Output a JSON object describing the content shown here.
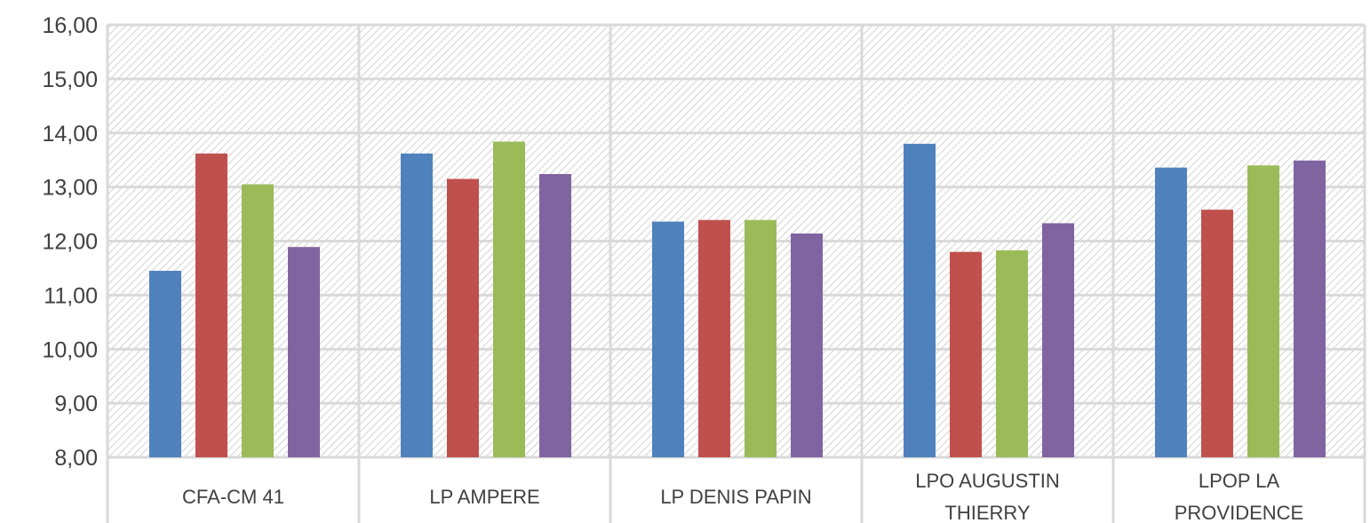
{
  "chart_data": {
    "type": "bar",
    "ylim": [
      8,
      16
    ],
    "yticks": [
      "8,00",
      "9,00",
      "10,00",
      "11,00",
      "12,00",
      "13,00",
      "14,00",
      "15,00",
      "16,00"
    ],
    "grid": true,
    "legend": "none",
    "categories": [
      {
        "lines": [
          "CFA-CM 41"
        ]
      },
      {
        "lines": [
          "LP AMPERE"
        ]
      },
      {
        "lines": [
          "LP DENIS PAPIN"
        ]
      },
      {
        "lines": [
          "LPO AUGUSTIN",
          "THIERRY"
        ]
      },
      {
        "lines": [
          "LPOP LA",
          "PROVIDENCE"
        ]
      }
    ],
    "series": [
      {
        "color": "#4F81BD",
        "values": [
          11.45,
          13.62,
          12.36,
          13.8,
          13.36
        ]
      },
      {
        "color": "#C0504D",
        "values": [
          13.62,
          13.15,
          12.39,
          11.8,
          12.58
        ]
      },
      {
        "color": "#9BBB59",
        "values": [
          13.05,
          13.84,
          12.39,
          11.83,
          13.4
        ]
      },
      {
        "color": "#8064A2",
        "values": [
          11.89,
          13.24,
          12.14,
          12.33,
          13.49
        ]
      }
    ]
  }
}
